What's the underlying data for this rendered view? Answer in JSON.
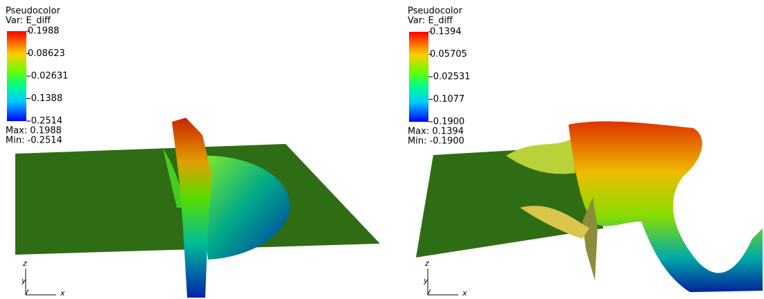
{
  "panels": [
    {
      "legend": {
        "title": "Pseudocolor",
        "var": "Var: E_diff",
        "ticks": [
          "0.1988",
          "0.08623",
          "-0.02631",
          "-0.1388",
          "-0.2514"
        ],
        "max": "Max:  0.1988",
        "min": "Min: -0.2514"
      },
      "axes": {
        "z": "z",
        "y": "y",
        "x": "x"
      }
    },
    {
      "legend": {
        "title": "Pseudocolor",
        "var": "Var: E_diff",
        "ticks": [
          "0.1394",
          "0.05705",
          "-0.02531",
          "-0.1077",
          "-0.1900"
        ],
        "max": "Max:  0.1394",
        "min": "Min: -0.1900"
      },
      "axes": {
        "z": "z",
        "y": "y",
        "x": "x"
      }
    }
  ]
}
